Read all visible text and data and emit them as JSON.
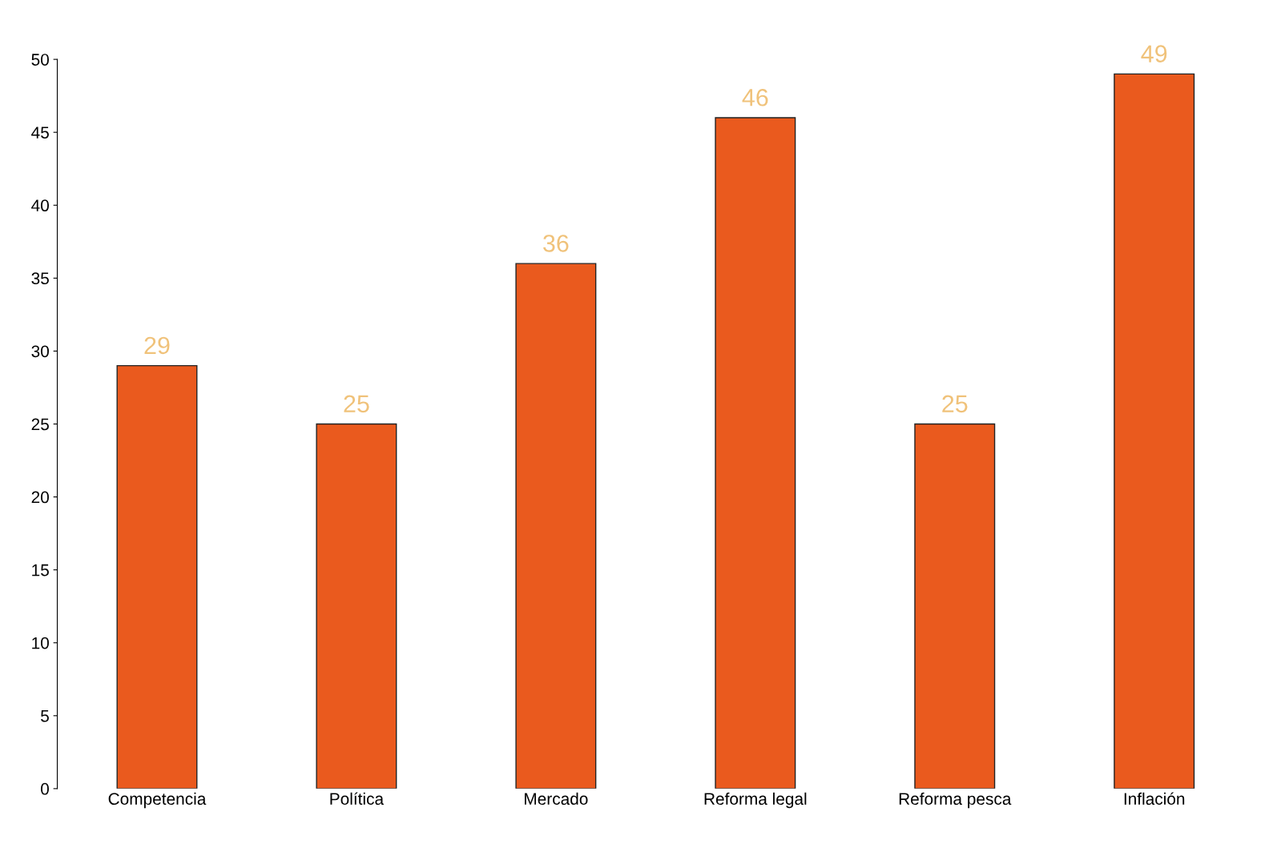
{
  "chart_data": {
    "type": "bar",
    "categories": [
      "Competencia",
      "Política",
      "Mercado",
      "Reforma legal",
      "Reforma pesca",
      "Inflación"
    ],
    "values": [
      29,
      25,
      36,
      46,
      25,
      49
    ],
    "color": "#ea5a1e",
    "ylim": [
      0,
      50
    ],
    "yticks": [
      0,
      5,
      10,
      15,
      20,
      25,
      30,
      35,
      40,
      45,
      50
    ],
    "data_labels": true,
    "grid": false
  }
}
